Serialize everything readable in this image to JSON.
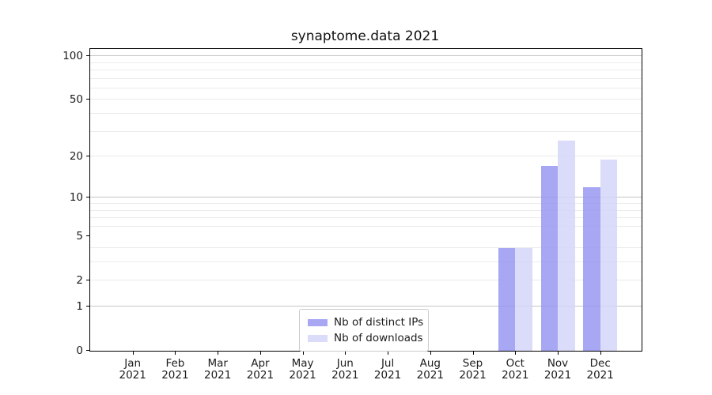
{
  "title": "synaptome.data 2021",
  "chart_data": {
    "type": "bar",
    "title": "synaptome.data 2021",
    "categories": [
      "Jan",
      "Feb",
      "Mar",
      "Apr",
      "May",
      "Jun",
      "Jul",
      "Aug",
      "Sep",
      "Oct",
      "Nov",
      "Dec"
    ],
    "x_sub_label": "2021",
    "series": [
      {
        "name": "Nb of distinct IPs",
        "color": "rgba(148,148,242,0.82)",
        "values": [
          0,
          0,
          0,
          0,
          0,
          0,
          0,
          0,
          0,
          4,
          17,
          12
        ]
      },
      {
        "name": "Nb of downloads",
        "color": "rgba(211,211,249,0.82)",
        "values": [
          0,
          0,
          0,
          0,
          0,
          0,
          0,
          0,
          0,
          4,
          26,
          19
        ]
      }
    ],
    "y_axis": {
      "scale": "log1p",
      "tick_values": [
        0,
        1,
        2,
        5,
        10,
        20,
        50,
        100
      ],
      "tick_labels": [
        "0",
        "1",
        "2",
        "5",
        "10",
        "20",
        "50",
        "100"
      ],
      "ylim": [
        0,
        112
      ]
    },
    "grid": {
      "on": true,
      "major_values": [
        1,
        10,
        100
      ],
      "minor_values": [
        2,
        3,
        4,
        6,
        7,
        8,
        9,
        20,
        30,
        40,
        50,
        60,
        70,
        80,
        90
      ]
    },
    "legend": {
      "position": "lower center",
      "labels": [
        "Nb of distinct IPs",
        "Nb of downloads"
      ]
    }
  },
  "colors": {
    "background": "#ffffff",
    "spine": "#000000",
    "grid_major": "#c5c5c5",
    "grid_minor": "#ebebeb",
    "text": "#1c1c1c",
    "series_distinct_ips": "rgba(148,148,242,0.82)",
    "series_downloads": "rgba(211,211,249,0.82)"
  }
}
